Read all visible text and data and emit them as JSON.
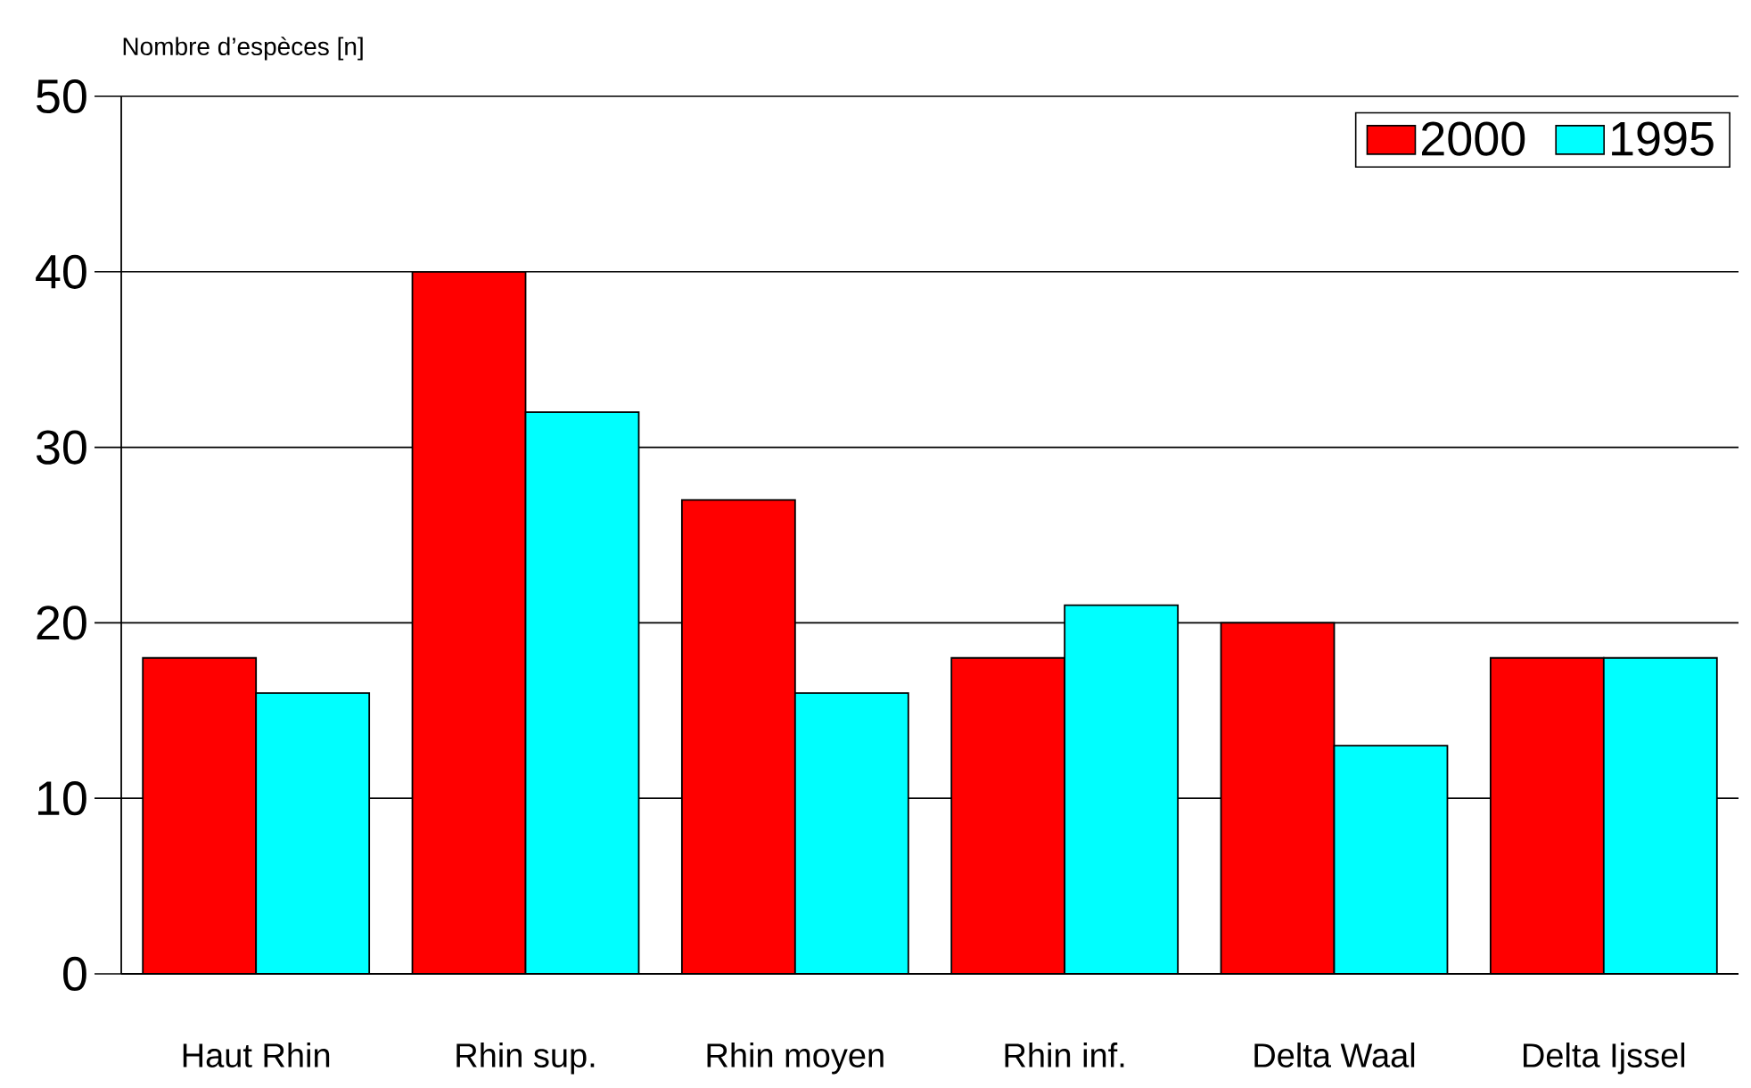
{
  "chart_data": {
    "type": "bar",
    "ylabel": "Nombre d’espèces  [n]",
    "categories": [
      "Haut Rhin",
      "Rhin sup.",
      "Rhin moyen",
      "Rhin inf.",
      "Delta Waal",
      "Delta Ijssel"
    ],
    "series": [
      {
        "name": "2000",
        "color": "#ff0000",
        "values": [
          18,
          40,
          27,
          18,
          20,
          18
        ]
      },
      {
        "name": "1995",
        "color": "#00ffff",
        "values": [
          16,
          32,
          16,
          21,
          13,
          18
        ]
      }
    ],
    "ylim": [
      0,
      50
    ],
    "yticks": [
      0,
      10,
      20,
      30,
      40,
      50
    ],
    "grid": "y",
    "legend": "top right"
  }
}
